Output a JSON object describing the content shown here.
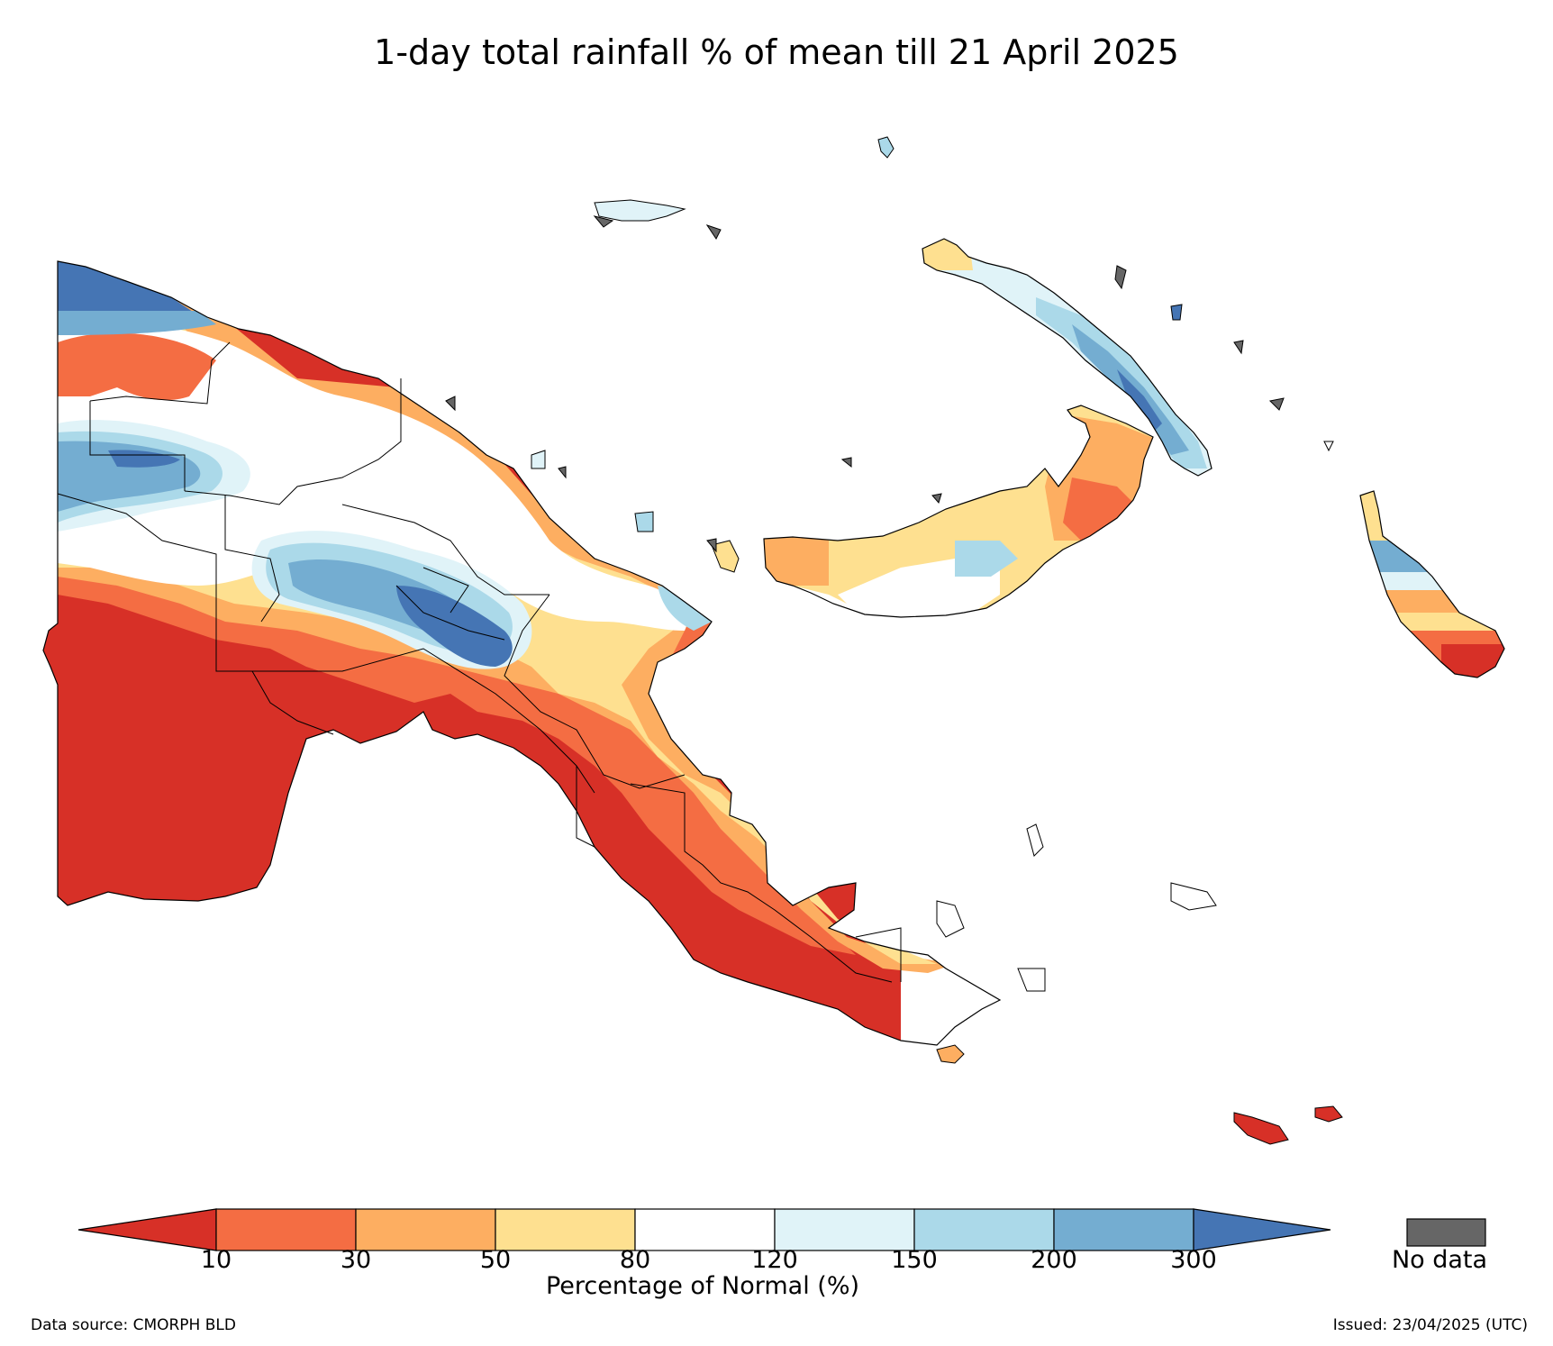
{
  "title": "1-day total rainfall % of mean till 21 April 2025",
  "legend": {
    "title": "Percentage of Normal (%)",
    "ticks": [
      "10",
      "30",
      "50",
      "80",
      "120",
      "150",
      "200",
      "300"
    ],
    "colors": [
      "#d73027",
      "#f46d43",
      "#fdae61",
      "#fee090",
      "#ffffff",
      "#e0f3f8",
      "#abd9e9",
      "#74add1",
      "#4575b4"
    ],
    "nodata_label": "No data",
    "nodata_color": "#666666"
  },
  "footer": {
    "source": "Data source: CMORPH BLD",
    "issued": "Issued: 23/04/2025 (UTC)"
  }
}
